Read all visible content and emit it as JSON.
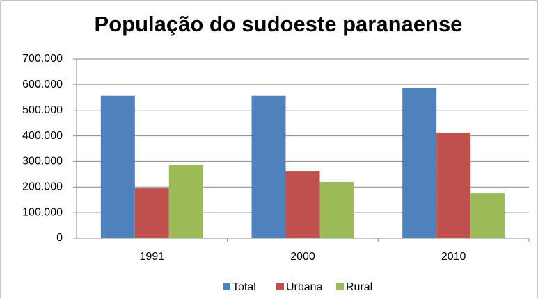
{
  "chart_data": {
    "type": "bar",
    "title": "População do sudoeste paranaense",
    "categories": [
      "1991",
      "2000",
      "2010"
    ],
    "series": [
      {
        "name": "Total",
        "color": "#4f81bd",
        "values": [
          557000,
          557000,
          587000
        ]
      },
      {
        "name": "Urbana",
        "color": "#c0504d",
        "values": [
          195000,
          263000,
          412000
        ]
      },
      {
        "name": "Rural",
        "color": "#9bbb59",
        "values": [
          287000,
          220000,
          176000
        ]
      }
    ],
    "ylim": [
      0,
      700000
    ],
    "yticks": [
      0,
      {
        "value": 100000,
        "label": "100.000"
      },
      {
        "value": 200000,
        "label": "200.000"
      },
      {
        "value": 300000,
        "label": "300.000"
      },
      {
        "value": 400000,
        "label": "400.000"
      },
      {
        "value": 500000,
        "label": "500.000"
      },
      {
        "value": 600000,
        "label": "600.000"
      },
      {
        "value": 700000,
        "label": "700.000"
      }
    ],
    "grid": true,
    "legend": "bottom"
  }
}
